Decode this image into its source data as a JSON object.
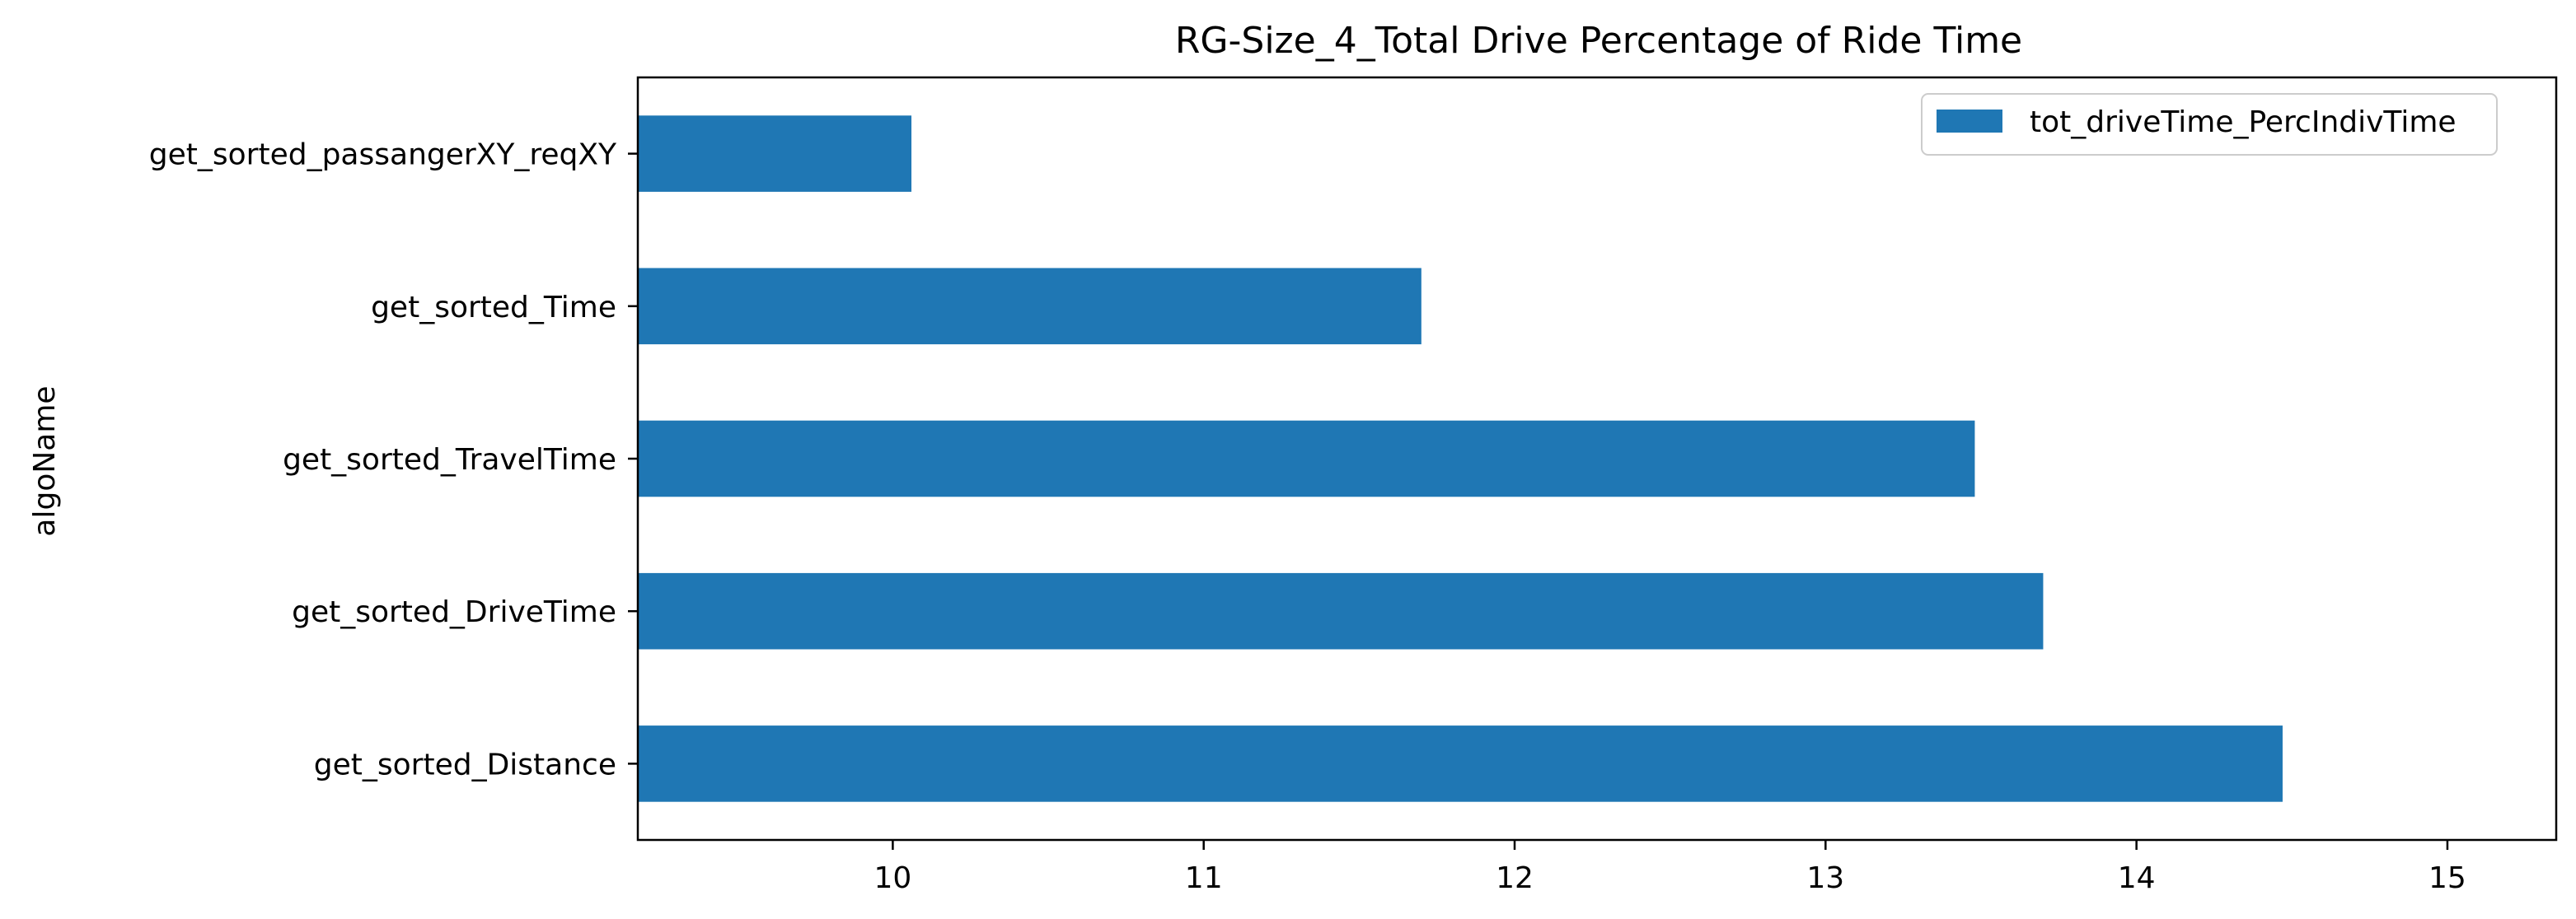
{
  "chart_data": {
    "type": "bar",
    "orientation": "horizontal",
    "title": "RG-Size_4_Total Drive Percentage of Ride Time",
    "xlabel": "",
    "ylabel": "algoName",
    "categories": [
      "get_sorted_Distance",
      "get_sorted_DriveTime",
      "get_sorted_TravelTime",
      "get_sorted_Time",
      "get_sorted_passangerXY_reqXY"
    ],
    "series": [
      {
        "name": "tot_driveTime_PercIndivTime",
        "color": "#1f77b4",
        "values": [
          14.47,
          13.7,
          13.48,
          11.7,
          10.06
        ]
      }
    ],
    "xlim": [
      9.18,
      15.35
    ],
    "xticks": [
      10,
      11,
      12,
      13,
      14,
      15
    ],
    "grid": false,
    "legend_position": "upper right"
  }
}
